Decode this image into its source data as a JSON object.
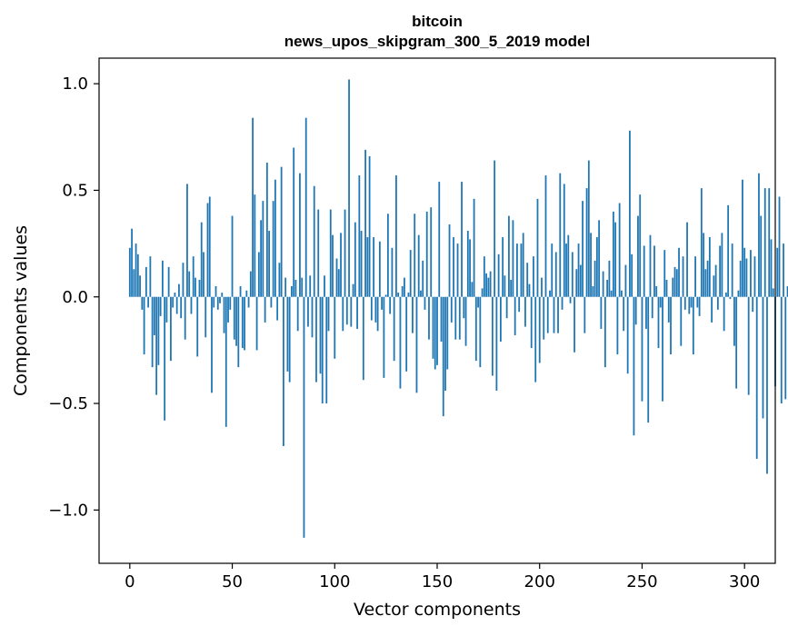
{
  "chart_data": {
    "type": "bar",
    "title": "bitcoin",
    "subtitle": "news_upos_skipgram_300_5_2019 model",
    "xlabel": "Vector components",
    "ylabel": "Components values",
    "xlim": [
      -15,
      315
    ],
    "ylim": [
      -1.25,
      1.12
    ],
    "xticks": [
      0,
      50,
      100,
      150,
      200,
      250,
      300
    ],
    "yticks": [
      -1.0,
      -0.5,
      0.0,
      0.5,
      1.0
    ],
    "xtick_labels": [
      "0",
      "50",
      "100",
      "150",
      "200",
      "250",
      "300"
    ],
    "ytick_labels": [
      "−1.0",
      "−0.5",
      "0.0",
      "0.5",
      "1.0"
    ],
    "bar_color": "#1f77b4",
    "values": [
      0.23,
      0.32,
      0.13,
      0.25,
      0.2,
      0.1,
      -0.06,
      -0.27,
      0.14,
      -0.05,
      0.19,
      -0.33,
      -0.18,
      -0.46,
      -0.32,
      -0.09,
      0.17,
      -0.58,
      -0.12,
      0.14,
      -0.3,
      -0.05,
      0.02,
      -0.08,
      0.06,
      -0.1,
      0.16,
      -0.2,
      0.53,
      0.12,
      -0.08,
      0.19,
      0.09,
      -0.28,
      0.08,
      0.35,
      0.21,
      -0.19,
      0.44,
      0.47,
      -0.45,
      -0.05,
      0.05,
      -0.06,
      -0.03,
      0.02,
      -0.17,
      -0.61,
      -0.12,
      -0.06,
      0.38,
      -0.2,
      -0.23,
      -0.33,
      0.05,
      -0.24,
      -0.25,
      0.03,
      -0.05,
      0.12,
      0.84,
      0.48,
      -0.25,
      0.21,
      0.36,
      0.45,
      -0.12,
      0.63,
      0.31,
      -0.05,
      0.45,
      0.55,
      -0.11,
      0.16,
      0.61,
      -0.7,
      0.09,
      -0.35,
      -0.4,
      0.05,
      0.7,
      0.08,
      -0.16,
      0.58,
      0.09,
      -1.13,
      0.84,
      -0.14,
      0.1,
      -0.19,
      0.52,
      -0.4,
      0.41,
      -0.36,
      -0.5,
      0.1,
      -0.5,
      -0.16,
      0.41,
      0.29,
      -0.29,
      0.18,
      0.13,
      0.3,
      -0.16,
      0.41,
      -0.13,
      1.02,
      -0.14,
      0.06,
      0.35,
      -0.15,
      0.57,
      0.31,
      -0.39,
      0.69,
      0.28,
      0.66,
      -0.11,
      0.28,
      -0.12,
      -0.16,
      0.26,
      -0.06,
      -0.38,
      0.01,
      0.39,
      -0.08,
      0.23,
      -0.3,
      0.57,
      0.02,
      -0.43,
      0.05,
      0.09,
      -0.35,
      0.02,
      0.22,
      -0.17,
      0.39,
      -0.45,
      0.29,
      0.03,
      0.17,
      -0.06,
      0.4,
      -0.2,
      0.42,
      -0.29,
      -0.34,
      -0.32,
      0.54,
      -0.21,
      -0.56,
      -0.44,
      -0.34,
      0.34,
      -0.12,
      0.28,
      -0.2,
      0.25,
      -0.2,
      0.54,
      -0.1,
      -0.23,
      0.31,
      0.27,
      0.07,
      0.46,
      -0.3,
      -0.05,
      -0.33,
      0.04,
      0.19,
      0.11,
      0.09,
      0.12,
      -0.37,
      0.64,
      -0.44,
      0.2,
      -0.21,
      0.28,
      0.1,
      -0.1,
      0.38,
      0.08,
      0.36,
      -0.18,
      0.25,
      -0.07,
      0.25,
      0.3,
      -0.14,
      0.16,
      0.06,
      -0.24,
      0.19,
      -0.4,
      0.46,
      -0.31,
      0.09,
      -0.2,
      0.57,
      -0.17,
      0.03,
      0.25,
      -0.17,
      0.21,
      -0.17,
      0.58,
      -0.06,
      0.53,
      0.25,
      0.29,
      -0.03,
      0.21,
      -0.26,
      0.13,
      0.25,
      0.15,
      0.45,
      -0.17,
      0.51,
      0.64,
      0.3,
      0.05,
      0.17,
      0.28,
      0.36,
      -0.15,
      0.12,
      -0.33,
      0.08,
      0.17,
      0.03,
      0.4,
      0.35,
      -0.27,
      0.44,
      0.03,
      -0.16,
      0.15,
      -0.36,
      0.78,
      0.2,
      -0.65,
      -0.13,
      0.38,
      0.48,
      -0.49,
      0.24,
      -0.15,
      -0.59,
      0.29,
      -0.1,
      0.24,
      0.05,
      -0.24,
      -0.05,
      -0.49,
      0.22,
      0.08,
      -0.12,
      -0.27,
      0.09,
      0.14,
      0.13,
      0.23,
      -0.23,
      0.19,
      -0.06,
      0.35,
      -0.08,
      -0.05,
      -0.27,
      0.19,
      -0.05,
      -0.09,
      0.51,
      0.3,
      0.13,
      0.17,
      0.28,
      -0.12,
      0.1,
      0.15,
      -0.06,
      0.24,
      0.3,
      -0.16,
      0.02,
      0.43,
      -0.01,
      0.25,
      -0.23,
      -0.43,
      0.03,
      0.17,
      0.55,
      0.23,
      0.18,
      -0.46,
      0.22,
      -0.07,
      0.19,
      -0.76,
      0.58,
      0.38,
      -0.57,
      0.51,
      -0.83,
      0.51,
      0.27,
      0.04,
      -0.42,
      0.23,
      0.47,
      -0.5,
      0.25,
      -0.48,
      0.05,
      0.51
    ]
  }
}
